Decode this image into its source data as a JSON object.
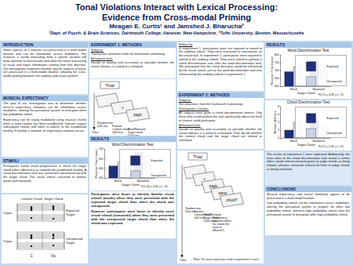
{
  "header": {
    "title_lines": [
      "Tonal Violations Interact with Lexical Processing:",
      "Evidence from Cross-modal Priming"
    ],
    "authors": "Meagan E. Curtis¹ and Jamshed J. Bharucha²",
    "affiliations": "¹Dept. of Psych. & Brain Sciences, Dartmouth College, Hanover, New Hampshire, ²Tufts University, Boston, Massachusetts"
  },
  "sections": {
    "intro": {
      "heading": "INTRODUCTION",
      "paragraphs": [
        {
          "text": "Some aspects of a stimulus are processed in a multi-modal manner and can be informative across modalities. For instance, a sound emanating from a specific location will draw attention to that location and allow the faster processing of visual and haptic information coming from that direction. Our investigation examines whether specific aspects of music are processed in a multi-modal manner, allowing for cross-modal priming between the auditory and visual systems."
        }
      ]
    },
    "expectancy": {
      "heading": "MUSICAL EXPECTANCY",
      "paragraphs": [
        {
          "text": "The goal of our investigation was to determine whether musical expectancy violations can be informative across modalities, altering the perceptual system to anticipate other low probability stimuli."
        },
        {
          "text": "Expectancy can be easily modulated using musical chords when a tonal context has been established; listeners expect subsequent chords and notes to adhere to the established tonality. If tonality is violated, an expectancy violation occurs."
        }
      ]
    },
    "stimuli": {
      "heading": "STIMULI",
      "paragraphs": [
        {
          "text": "Participants heard chord progressions in which the target chord either adhered to or violated the established tonality. A visual discrimination task was presented simultaneously with the target chord. The visual stimuli consisted of familiar words and nonwords."
        }
      ]
    },
    "exp1_methods": {
      "heading": "EXPERIMENT 1: METHODS",
      "paragraphs": [
        {
          "label": "Subjects:",
          "text": "Twenty-four volunteers from the Dartmouth community."
        },
        {
          "label": "Behavioral task:",
          "text": "Decide as quickly and accurately as possible whether the visual stimulus is a word or a nonword."
        }
      ]
    },
    "exp1_results": {
      "heading": "RESULTS",
      "paragraphs": [
        {
          "text": "Participants were faster to identify familiar visual stimuli (words) when they were presented with the expected target chord than when the chord was unexpected."
        },
        {
          "text": "However, participants were faster to identify novel visual stimuli (nonwords) when they were presented with the unexpected target chord than when the chord was expected."
        }
      ]
    },
    "follow_up": {
      "paragraphs": [
        {
          "label": "Follow Up",
          "text": "In experiment 1, participants were not required to attend to the auditory stimuli. They were instructed to concentrate on the visual task. In experiment 2, participants were required to attend to the auditory stimuli. They were asked to perform a chord discrimination task after the word discrimination task. We anticipated that the chord decisions would be influenced by the visual stimuli, just as the word discrimination task was influenced by the auditory stimuli in experiment 1."
        }
      ]
    },
    "exp2_methods": {
      "heading": "EXPERIMENT 2: METHODS",
      "paragraphs": [
        {
          "label": "Subjects:",
          "text": "Ten volunteers from the Dartmouth Community."
        },
        {
          "label": "Participation Criterion:",
          "text": "All subjects were given a chord discrimination pretest. Only those who could perform the task significantly above the level of chance could participate."
        },
        {
          "label": "Behavioral task:",
          "text": "Decide as quickly and accurately as possible whether the visual stimulus is a word or a nonword. Then decide whether the context chord and the target chord are related or unrelated."
        }
      ]
    },
    "exp2_results": {
      "heading": "RESULTS",
      "paragraphs": [
        {
          "text": "The results of experiment 1 were replicated. Additionally, the error rates to the chord discrimination task reveal a similar effect: words influenced participants to judge chords as being related, whereas nonwords influenced them to judge chords as being unrelated."
        }
      ]
    },
    "conclusions": {
      "heading": "CONCLUSIONS",
      "paragraphs": [
        {
          "text": "Musical expectancy and lexical familiarity appear to be processed in a multi-modal fashion."
        },
        {
          "text": "Low probability stimuli can be informative across modalities, altering the perceptual system to prepare for other low probability stimuli, whereas high probability stimuli alert the perceptual system to anticipate other high probability stimuli."
        }
      ]
    }
  },
  "figures": {
    "notation": {
      "context": "Context Chord",
      "target": "Target Chord",
      "instrument": "Organ",
      "expected": "Expected Target",
      "unexpected": "Unexpected Target",
      "chord_labels": [
        "C",
        "Fa"
      ]
    },
    "trial1": {
      "title": "Trial",
      "screens": [
        "",
        "+",
        "pagic"
      ],
      "captions": [
        "Random time (500 ms)",
        "Fixation Context chord (600 ms)",
        "Word/Nonword Target chord (1000 ms)"
      ],
      "time": "Time"
    },
    "trial2": {
      "title": "Trial",
      "screens": [
        "",
        "+",
        "pagic",
        "same",
        "chord?"
      ],
      "captions": [
        "Random time (500 ms)",
        "Fixation Context chord (600 ms)",
        "Word/Nonword Target chord (1000 ms)",
        "Relatedness judgment (Were the chords the same or different?)"
      ],
      "time": "Time",
      "note": "*Note: The same stimuli was used in experiments 1 and 2."
    }
  },
  "chart_data": [
    {
      "type": "bar",
      "title": "Word Discrimination Test",
      "x_label": "Target Chord",
      "y_label": "Reaction Time (msec)",
      "categories": [
        "Word",
        "Nonword"
      ],
      "series": [
        {
          "name": "Expected",
          "color": "#1f2f7a",
          "values": [
            612,
            682
          ]
        },
        {
          "name": "Unexpected",
          "color": "#c7d3e6",
          "values": [
            634,
            664
          ]
        }
      ],
      "ylim": [
        550,
        700
      ],
      "yticks": [
        550,
        600,
        650,
        700
      ],
      "grid": false,
      "legend": "top right",
      "annotations": [
        "F(1,23) = 5.84, p < .05"
      ]
    },
    {
      "type": "bar",
      "title": "Word Discrimination Test",
      "x_label": "Target Chord",
      "y_label": "Reaction Time (msec)",
      "categories": [
        "Word",
        "Nonword"
      ],
      "series": [
        {
          "name": "Expected",
          "color": "#1f2f7a",
          "values": [
            692,
            762
          ]
        },
        {
          "name": "Unexpected",
          "color": "#c7d3e6",
          "values": [
            724,
            738
          ]
        }
      ],
      "ylim": [
        600,
        800
      ],
      "yticks": [
        600,
        650,
        700,
        750,
        800
      ],
      "grid": false,
      "legend": "top right",
      "annotations": [
        "F(1,9) = 6.28, p < .05"
      ]
    },
    {
      "type": "bar",
      "title": "Chord Discrimination Test",
      "x_label": "Target Chord",
      "y_label": "Number of Errors",
      "categories": [
        "Word",
        "Nonword"
      ],
      "series": [
        {
          "name": "Expected",
          "color": "#1f2f7a",
          "values": [
            2,
            5
          ]
        },
        {
          "name": "Unexpected",
          "color": "#c7d3e6",
          "values": [
            4,
            3
          ]
        }
      ],
      "ylim": [
        0,
        8
      ],
      "yticks": [
        0,
        2,
        4,
        6,
        8
      ],
      "grid": false,
      "legend": "top right",
      "annotations": [
        "F(1,9) = 5.33, p < .05"
      ]
    }
  ]
}
